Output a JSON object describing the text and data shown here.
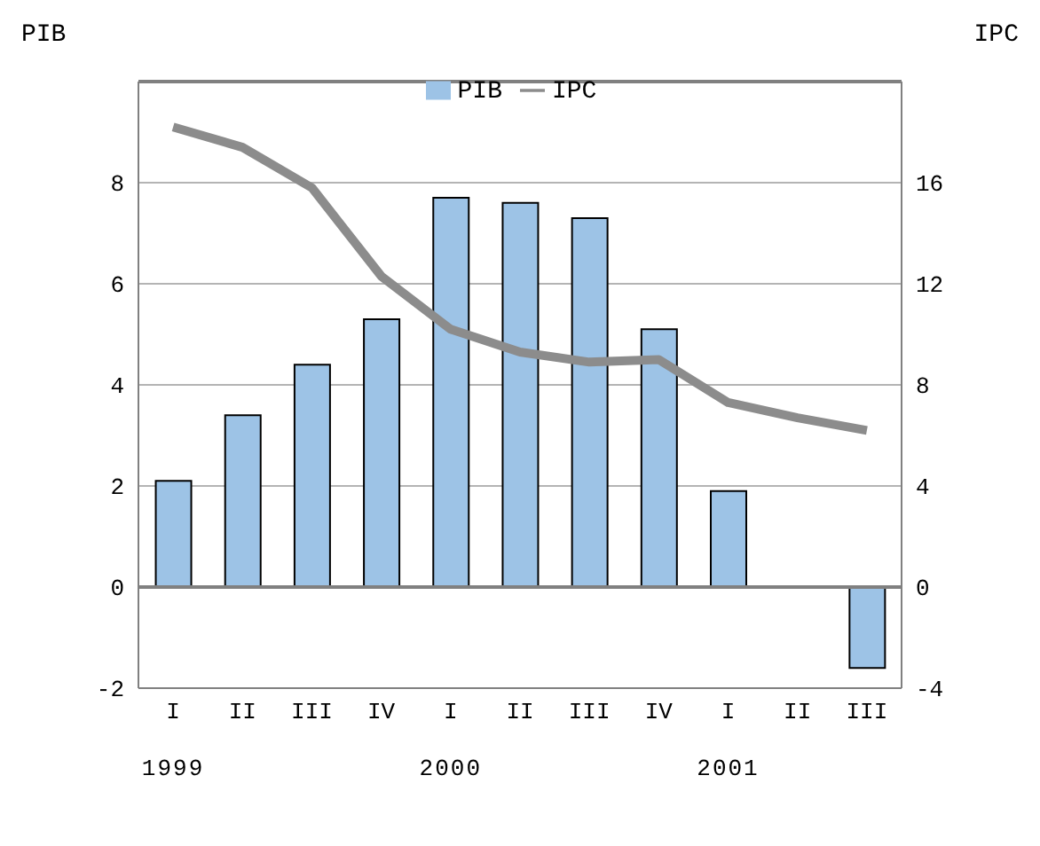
{
  "chart_data": {
    "type": "bar",
    "ylabel": "PIB",
    "y2label": "IPC",
    "categories": [
      "I",
      "II",
      "III",
      "IV",
      "I",
      "II",
      "III",
      "IV",
      "I",
      "II",
      "III"
    ],
    "series": [
      {
        "name": "PIB",
        "color": "#9dc3e6",
        "values": [
          2.1,
          3.4,
          4.4,
          5.3,
          7.7,
          7.6,
          7.3,
          5.1,
          1.9,
          null,
          -1.6
        ]
      },
      {
        "name": "IPC",
        "type": "line",
        "axis": "y2",
        "color": "#8c8c8c",
        "values": [
          18.2,
          17.4,
          15.8,
          12.3,
          10.2,
          9.3,
          8.9,
          9.0,
          7.3,
          6.7,
          6.2
        ]
      }
    ],
    "ylim": [
      -2,
      10
    ],
    "yticks": [
      -2,
      0,
      2,
      4,
      6,
      8
    ],
    "y2lim": [
      -4,
      20
    ],
    "y2ticks": [
      -4,
      0,
      4,
      8,
      12,
      16
    ],
    "grid": "y",
    "legend": "top",
    "marker": "none",
    "line_style": "solid",
    "annotations": [
      "1999",
      "2000",
      "2001"
    ]
  }
}
